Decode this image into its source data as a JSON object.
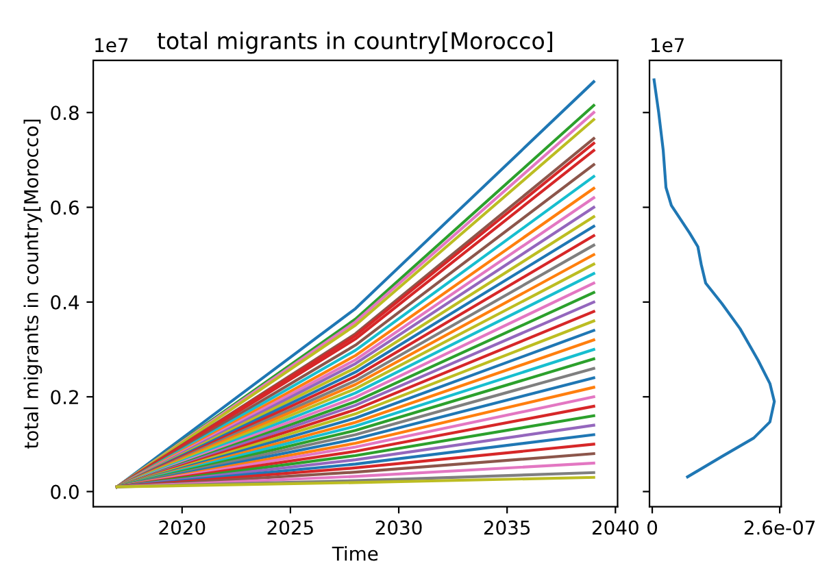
{
  "chart_data": [
    {
      "type": "line",
      "title": "total migrants in country[Morocco]",
      "xlabel": "Time",
      "ylabel": "total migrants in country[Morocco]",
      "x": [
        2017,
        2028,
        2039
      ],
      "xlim": [
        2015.9,
        2040.1
      ],
      "xticks": [
        2020,
        2025,
        2030,
        2035,
        2040
      ],
      "ylim": [
        -0.032,
        0.91
      ],
      "yticks": [
        {
          "value": 0.0,
          "label": "0.0"
        },
        0.2,
        0.4,
        0.6,
        0.8
      ],
      "annotations": [
        "1e7"
      ],
      "grid": false,
      "series": [
        {
          "color": "#1f77b4",
          "values": [
            0.01,
            0.386,
            0.865
          ]
        },
        {
          "color": "#2ca02c",
          "values": [
            0.01,
            0.364,
            0.815
          ]
        },
        {
          "color": "#e377c2",
          "values": [
            0.01,
            0.358,
            0.8
          ]
        },
        {
          "color": "#bcbd22",
          "values": [
            0.01,
            0.351,
            0.785
          ]
        },
        {
          "color": "#8c564b",
          "values": [
            0.01,
            0.333,
            0.745
          ]
        },
        {
          "color": "#d62728",
          "values": [
            0.01,
            0.329,
            0.735
          ]
        },
        {
          "color": "#d62728",
          "values": [
            0.01,
            0.322,
            0.72
          ]
        },
        {
          "color": "#8c564b",
          "values": [
            0.01,
            0.309,
            0.69
          ]
        },
        {
          "color": "#17becf",
          "values": [
            0.01,
            0.298,
            0.665
          ]
        },
        {
          "color": "#ff7f0e",
          "values": [
            0.01,
            0.287,
            0.64
          ]
        },
        {
          "color": "#e377c2",
          "values": [
            0.01,
            0.278,
            0.62
          ]
        },
        {
          "color": "#9467bd",
          "values": [
            0.01,
            0.27,
            0.6
          ]
        },
        {
          "color": "#bcbd22",
          "values": [
            0.01,
            0.261,
            0.58
          ]
        },
        {
          "color": "#1f77b4",
          "values": [
            0.01,
            0.252,
            0.56
          ]
        },
        {
          "color": "#d62728",
          "values": [
            0.01,
            0.243,
            0.54
          ]
        },
        {
          "color": "#7f7f7f",
          "values": [
            0.01,
            0.234,
            0.52
          ]
        },
        {
          "color": "#ff7f0e",
          "values": [
            0.01,
            0.226,
            0.5
          ]
        },
        {
          "color": "#bcbd22",
          "values": [
            0.01,
            0.217,
            0.48
          ]
        },
        {
          "color": "#17becf",
          "values": [
            0.01,
            0.208,
            0.46
          ]
        },
        {
          "color": "#e377c2",
          "values": [
            0.01,
            0.199,
            0.44
          ]
        },
        {
          "color": "#2ca02c",
          "values": [
            0.01,
            0.19,
            0.42
          ]
        },
        {
          "color": "#9467bd",
          "values": [
            0.01,
            0.182,
            0.4
          ]
        },
        {
          "color": "#d62728",
          "values": [
            0.01,
            0.173,
            0.38
          ]
        },
        {
          "color": "#bcbd22",
          "values": [
            0.01,
            0.164,
            0.36
          ]
        },
        {
          "color": "#1f77b4",
          "values": [
            0.01,
            0.155,
            0.34
          ]
        },
        {
          "color": "#ff7f0e",
          "values": [
            0.01,
            0.146,
            0.32
          ]
        },
        {
          "color": "#17becf",
          "values": [
            0.01,
            0.138,
            0.3
          ]
        },
        {
          "color": "#2ca02c",
          "values": [
            0.01,
            0.129,
            0.28
          ]
        },
        {
          "color": "#7f7f7f",
          "values": [
            0.01,
            0.12,
            0.26
          ]
        },
        {
          "color": "#1f77b4",
          "values": [
            0.01,
            0.111,
            0.24
          ]
        },
        {
          "color": "#ff7f0e",
          "values": [
            0.01,
            0.102,
            0.22
          ]
        },
        {
          "color": "#e377c2",
          "values": [
            0.01,
            0.094,
            0.2
          ]
        },
        {
          "color": "#d62728",
          "values": [
            0.01,
            0.085,
            0.18
          ]
        },
        {
          "color": "#2ca02c",
          "values": [
            0.01,
            0.076,
            0.16
          ]
        },
        {
          "color": "#9467bd",
          "values": [
            0.01,
            0.067,
            0.14
          ]
        },
        {
          "color": "#1f77b4",
          "values": [
            0.01,
            0.058,
            0.12
          ]
        },
        {
          "color": "#d62728",
          "values": [
            0.01,
            0.05,
            0.1
          ]
        },
        {
          "color": "#8c564b",
          "values": [
            0.01,
            0.041,
            0.08
          ]
        },
        {
          "color": "#e377c2",
          "values": [
            0.01,
            0.032,
            0.06
          ]
        },
        {
          "color": "#7f7f7f",
          "values": [
            0.01,
            0.023,
            0.04
          ]
        },
        {
          "color": "#bcbd22",
          "values": [
            0.01,
            0.019,
            0.03
          ]
        }
      ]
    },
    {
      "type": "line",
      "xlim": [
        -5.6e-09,
        2.63e-07
      ],
      "xticks": [
        0,
        {
          "value": 2.6e-07,
          "label": "2.6e-07"
        }
      ],
      "ylim": [
        -0.032,
        0.91
      ],
      "yticks": [
        {
          "value": 0.0,
          "label": null
        },
        {
          "value": 0.2,
          "label": null
        },
        {
          "value": 0.4,
          "label": null
        },
        {
          "value": 0.6,
          "label": null
        },
        {
          "value": 0.8,
          "label": null
        }
      ],
      "tick_labels": "x",
      "annotations": [
        "1e7"
      ],
      "grid": false,
      "series": [
        {
          "color": "#1f77b4",
          "x": [
            3.7e-09,
            1.3e-08,
            2.24e-08,
            2.8e-08,
            3.9e-08,
            7.6e-08,
            9.3e-08,
            1e-07,
            1.09e-07,
            1.42e-07,
            1.79e-07,
            2.16e-07,
            2.4e-07,
            2.49e-07,
            2.4e-07,
            2.07e-07,
            1.42e-07,
            7.2e-08
          ],
          "values": [
            0.869,
            0.801,
            0.72,
            0.642,
            0.604,
            0.546,
            0.517,
            0.479,
            0.44,
            0.397,
            0.344,
            0.277,
            0.228,
            0.19,
            0.147,
            0.113,
            0.074,
            0.031
          ]
        }
      ]
    }
  ]
}
